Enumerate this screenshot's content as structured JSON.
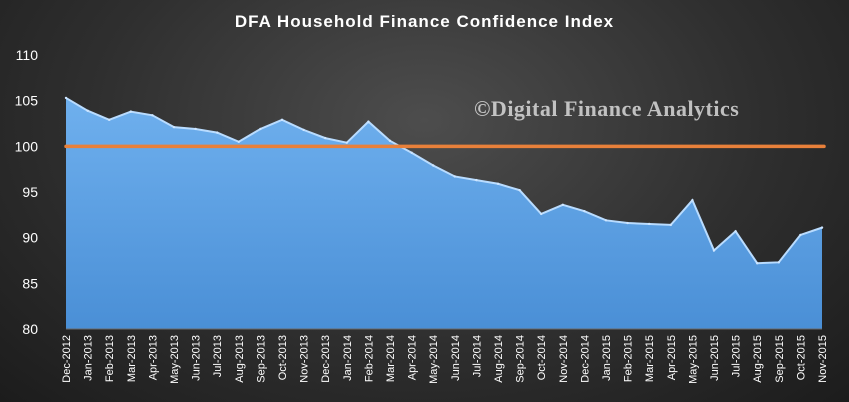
{
  "chart_data": {
    "type": "area",
    "title": "DFA Household Finance Confidence Index",
    "watermark": "©Digital Finance Analytics",
    "ylim": [
      80,
      110
    ],
    "yticks": [
      80,
      85,
      90,
      95,
      100,
      105,
      110
    ],
    "categories": [
      "Dec-2012",
      "Jan-2013",
      "Feb-2013",
      "Mar-2013",
      "Apr-2013",
      "May-2013",
      "Jun-2013",
      "Jul-2013",
      "Aug-2013",
      "Sep-2013",
      "Oct-2013",
      "Nov-2013",
      "Dec-2013",
      "Jan-2014",
      "Feb-2014",
      "Mar-2014",
      "Apr-2014",
      "May-2014",
      "Jun-2014",
      "Jul-2014",
      "Aug-2014",
      "Sep-2014",
      "Oct-2014",
      "Nov-2014",
      "Dec-2014",
      "Jan-2015",
      "Feb-2015",
      "Mar-2015",
      "Apr-2015",
      "May-2015",
      "Jun-2015",
      "Jul-2015",
      "Aug-2015",
      "Sep-2015",
      "Oct-2015",
      "Nov-2015"
    ],
    "series": [
      {
        "values": [
          105.3,
          103.9,
          102.9,
          103.8,
          103.4,
          102.1,
          101.9,
          101.5,
          100.5,
          101.9,
          102.9,
          101.8,
          100.9,
          100.4,
          102.7,
          100.6,
          99.3,
          97.9,
          96.7,
          96.3,
          95.9,
          95.2,
          92.6,
          93.6,
          92.9,
          91.9,
          91.6,
          91.5,
          91.4,
          94.1,
          88.6,
          90.7,
          87.2,
          87.3,
          90.3,
          91.1
        ],
        "color": "#5b9bd5"
      }
    ],
    "reference_line": {
      "value": 100,
      "color": "#e8803a"
    },
    "grid": false
  }
}
